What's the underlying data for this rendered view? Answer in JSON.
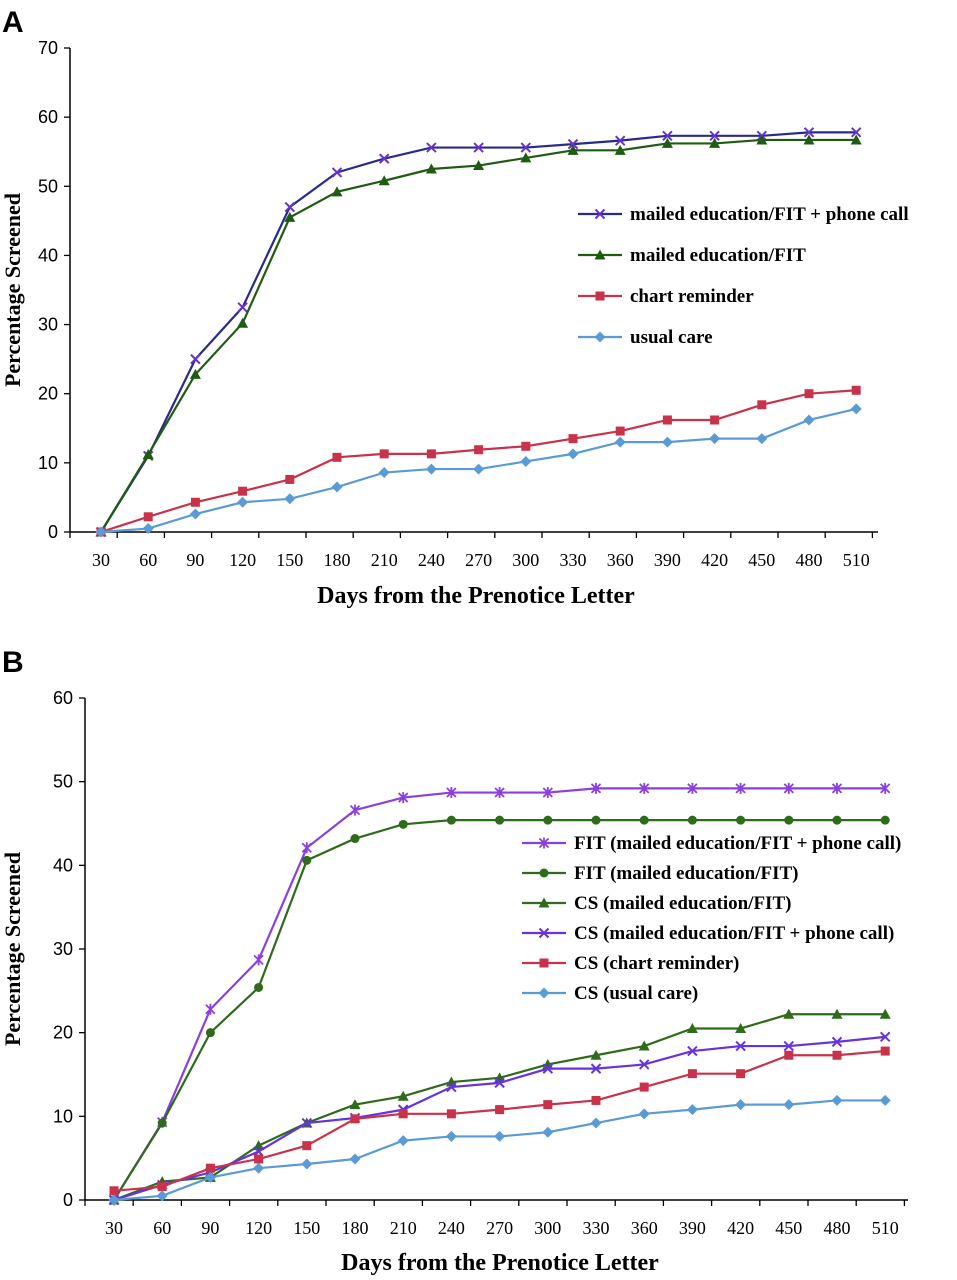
{
  "chart_data": [
    {
      "panel": "A",
      "type": "line",
      "xlabel": "Days from the Prenotice Letter",
      "ylabel": "Percentage Screened",
      "ylim": [
        0,
        70
      ],
      "yticks": [
        0,
        10,
        20,
        30,
        40,
        50,
        60,
        70
      ],
      "categories": [
        30,
        60,
        90,
        120,
        150,
        180,
        210,
        240,
        270,
        300,
        330,
        360,
        390,
        420,
        450,
        480,
        510
      ],
      "legend_position": "right-middle",
      "series": [
        {
          "name": "mailed education/FIT + phone call",
          "color": "#6633cc",
          "line": "#2a2a8c",
          "marker": "x",
          "values": [
            0,
            11,
            25,
            32.5,
            47,
            52,
            54,
            55.6,
            55.6,
            55.6,
            56.1,
            56.6,
            57.3,
            57.3,
            57.3,
            57.8,
            57.8
          ]
        },
        {
          "name": "mailed education/FIT",
          "color": "#1f5c12",
          "line": "#1f5c12",
          "marker": "triangle",
          "values": [
            0,
            11.2,
            22.8,
            30.2,
            45.5,
            49.2,
            50.8,
            52.5,
            53,
            54.1,
            55.2,
            55.2,
            56.2,
            56.2,
            56.7,
            56.7,
            56.7
          ]
        },
        {
          "name": "chart reminder",
          "color": "#c8324a",
          "line": "#c8324a",
          "marker": "square",
          "values": [
            0,
            2.2,
            4.3,
            5.9,
            7.6,
            10.8,
            11.3,
            11.3,
            11.9,
            12.4,
            13.5,
            14.6,
            16.2,
            16.2,
            18.4,
            20,
            20.5
          ]
        },
        {
          "name": "usual care",
          "color": "#5b9bd5",
          "line": "#5b9bd5",
          "marker": "diamond",
          "values": [
            0,
            0.5,
            2.6,
            4.3,
            4.8,
            6.5,
            8.6,
            9.1,
            9.1,
            10.2,
            11.3,
            13,
            13,
            13.5,
            13.5,
            16.2,
            17.8
          ]
        }
      ]
    },
    {
      "panel": "B",
      "type": "line",
      "xlabel": "Days from the Prenotice Letter",
      "ylabel": "Percentage Screened",
      "ylim": [
        0,
        60
      ],
      "yticks": [
        0,
        10,
        20,
        30,
        40,
        50,
        60
      ],
      "categories": [
        30,
        60,
        90,
        120,
        150,
        180,
        210,
        240,
        270,
        300,
        330,
        360,
        390,
        420,
        450,
        480,
        510
      ],
      "legend_position": "right-middle",
      "series": [
        {
          "name": "FIT (mailed education/FIT + phone call)",
          "color": "#8a3fe0",
          "line": "#8a3fe0",
          "marker": "star",
          "values": [
            0,
            9.3,
            22.8,
            28.7,
            42.1,
            46.6,
            48.1,
            48.7,
            48.7,
            48.7,
            49.2,
            49.2,
            49.2,
            49.2,
            49.2,
            49.2,
            49.2
          ]
        },
        {
          "name": "FIT (mailed education/FIT)",
          "color": "#2e6b1a",
          "line": "#2e6b1a",
          "marker": "circle",
          "values": [
            0,
            9.2,
            20,
            25.4,
            40.6,
            43.2,
            44.9,
            45.4,
            45.4,
            45.4,
            45.4,
            45.4,
            45.4,
            45.4,
            45.4,
            45.4,
            45.4
          ]
        },
        {
          "name": "CS (mailed education/FIT)",
          "color": "#2e6b1a",
          "line": "#2e6b1a",
          "marker": "triangle",
          "values": [
            0,
            2.2,
            2.7,
            6.5,
            9.2,
            11.4,
            12.4,
            14.1,
            14.6,
            16.2,
            17.3,
            18.4,
            20.5,
            20.5,
            22.2,
            22.2,
            22.2
          ]
        },
        {
          "name": "CS (mailed education/FIT + phone call)",
          "color": "#6633dd",
          "line": "#6633dd",
          "marker": "x",
          "values": [
            0,
            1.8,
            3.3,
            5.8,
            9.2,
            9.8,
            10.8,
            13.5,
            14,
            15.7,
            15.7,
            16.2,
            17.8,
            18.4,
            18.4,
            18.9,
            19.5
          ]
        },
        {
          "name": "CS (chart reminder)",
          "color": "#c8324a",
          "line": "#c8324a",
          "marker": "square",
          "values": [
            1.1,
            1.6,
            3.8,
            4.9,
            6.5,
            9.7,
            10.3,
            10.3,
            10.8,
            11.4,
            11.9,
            13.5,
            15.1,
            15.1,
            17.3,
            17.3,
            17.8
          ]
        },
        {
          "name": "CS (usual care)",
          "color": "#5b9bd5",
          "line": "#5b9bd5",
          "marker": "diamond",
          "values": [
            0,
            0.5,
            2.7,
            3.8,
            4.3,
            4.9,
            7.1,
            7.6,
            7.6,
            8.1,
            9.2,
            10.3,
            10.8,
            11.4,
            11.4,
            11.9,
            11.9
          ]
        }
      ]
    }
  ]
}
